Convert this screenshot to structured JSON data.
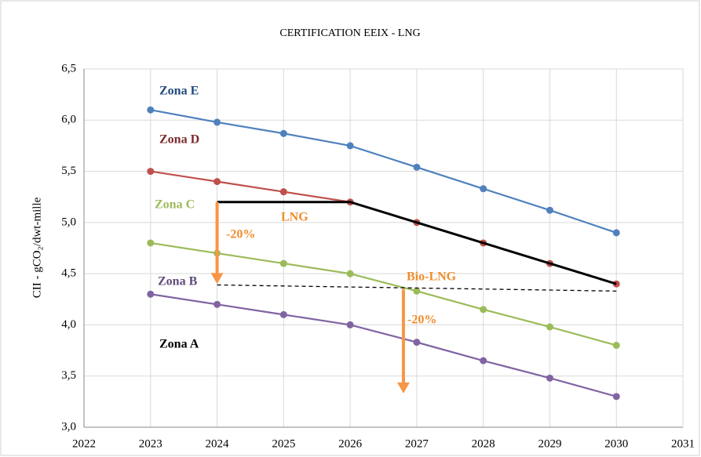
{
  "chart_data": {
    "type": "line",
    "title": "CERTIFICATION  EEIX - LNG",
    "ylabel": "CII - gCO₂/dwt-mille",
    "xlim": [
      2022,
      2031
    ],
    "xticks": [
      2022,
      2023,
      2024,
      2025,
      2026,
      2027,
      2028,
      2029,
      2030,
      2031
    ],
    "ylim": [
      3,
      6.5
    ],
    "yticks": [
      {
        "value": 3,
        "label": "3,0"
      },
      {
        "value": 3.5,
        "label": "3,5"
      },
      {
        "value": 4,
        "label": "4,0"
      },
      {
        "value": 4.5,
        "label": "4,5"
      },
      {
        "value": 5,
        "label": "5,0"
      },
      {
        "value": 5.5,
        "label": "5,5"
      },
      {
        "value": 6,
        "label": "6,0"
      },
      {
        "value": 6.5,
        "label": "6,5"
      }
    ],
    "grid": true,
    "series": [
      {
        "color": "#4f81bd",
        "marker": true,
        "x": [
          2023,
          2024,
          2025,
          2026,
          2027,
          2028,
          2029,
          2030
        ],
        "values": [
          6.1,
          5.98,
          5.87,
          5.75,
          5.54,
          5.33,
          5.12,
          4.9
        ]
      },
      {
        "color": "#c0504d",
        "marker": true,
        "x": [
          2023,
          2024,
          2025,
          2026,
          2027,
          2028,
          2029,
          2030
        ],
        "values": [
          5.5,
          5.4,
          5.3,
          5.2,
          5.0,
          4.8,
          4.6,
          4.4
        ]
      },
      {
        "color": "#9bbb59",
        "marker": true,
        "x": [
          2023,
          2024,
          2025,
          2026,
          2027,
          2028,
          2029,
          2030
        ],
        "values": [
          4.8,
          4.7,
          4.6,
          4.5,
          4.33,
          4.15,
          3.98,
          3.8
        ]
      },
      {
        "color": "#8064a2",
        "marker": true,
        "x": [
          2023,
          2024,
          2025,
          2026,
          2027,
          2028,
          2029,
          2030
        ],
        "values": [
          4.3,
          4.2,
          4.1,
          4.0,
          3.83,
          3.65,
          3.48,
          3.3
        ]
      },
      {
        "color": "#000000",
        "width": 3,
        "x": [
          2024,
          2026,
          2027,
          2028,
          2029,
          2030
        ],
        "values": [
          5.2,
          5.2,
          5.0,
          4.8,
          4.6,
          4.4
        ]
      },
      {
        "color": "#000000",
        "dashed": true,
        "x": [
          2024,
          2030
        ],
        "values": [
          4.39,
          4.33
        ]
      },
      {
        "color": "#f79646",
        "arrow": true,
        "x": [
          2024,
          2024
        ],
        "values": [
          5.2,
          4.4
        ]
      },
      {
        "color": "#f79646",
        "arrow": true,
        "x": [
          2026.8,
          2026.8
        ],
        "values": [
          4.35,
          3.33
        ]
      }
    ],
    "annotations": [
      {
        "text": "Zona E",
        "color": "#1f497d"
      },
      {
        "text": "Zona D",
        "color": "#7b2a2a"
      },
      {
        "text": "Zona C",
        "color": "#9bbb59"
      },
      {
        "text": "Zona B",
        "color": "#604a7b"
      },
      {
        "text": "Zona A",
        "color": "#000000"
      },
      {
        "text": "LNG",
        "color": "#f08c2c"
      },
      {
        "text": "-20%",
        "color": "#f08c2c"
      },
      {
        "text": "Bio-LNG",
        "color": "#f08c2c"
      },
      {
        "text": "-20%",
        "color": "#f08c2c"
      }
    ]
  }
}
